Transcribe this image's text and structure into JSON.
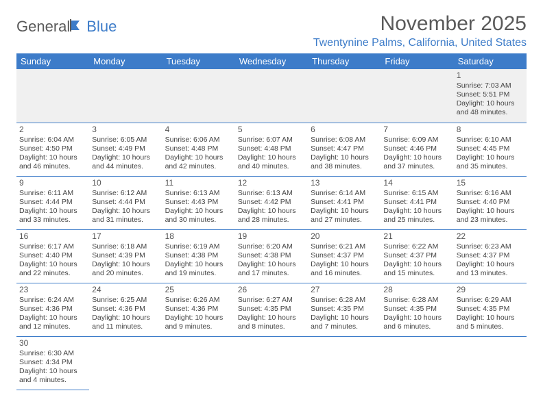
{
  "logo": {
    "text1": "General",
    "text2": "Blue"
  },
  "title": "November 2025",
  "location": "Twentynine Palms, California, United States",
  "colors": {
    "header_bg": "#3d7cc9",
    "header_text": "#ffffff",
    "border": "#3d7cc9",
    "logo_gray": "#5a5a5a"
  },
  "day_headers": [
    "Sunday",
    "Monday",
    "Tuesday",
    "Wednesday",
    "Thursday",
    "Friday",
    "Saturday"
  ],
  "weeks": [
    [
      null,
      null,
      null,
      null,
      null,
      null,
      {
        "n": "1",
        "sr": "Sunrise: 7:03 AM",
        "ss": "Sunset: 5:51 PM",
        "d1": "Daylight: 10 hours",
        "d2": "and 48 minutes."
      }
    ],
    [
      {
        "n": "2",
        "sr": "Sunrise: 6:04 AM",
        "ss": "Sunset: 4:50 PM",
        "d1": "Daylight: 10 hours",
        "d2": "and 46 minutes."
      },
      {
        "n": "3",
        "sr": "Sunrise: 6:05 AM",
        "ss": "Sunset: 4:49 PM",
        "d1": "Daylight: 10 hours",
        "d2": "and 44 minutes."
      },
      {
        "n": "4",
        "sr": "Sunrise: 6:06 AM",
        "ss": "Sunset: 4:48 PM",
        "d1": "Daylight: 10 hours",
        "d2": "and 42 minutes."
      },
      {
        "n": "5",
        "sr": "Sunrise: 6:07 AM",
        "ss": "Sunset: 4:48 PM",
        "d1": "Daylight: 10 hours",
        "d2": "and 40 minutes."
      },
      {
        "n": "6",
        "sr": "Sunrise: 6:08 AM",
        "ss": "Sunset: 4:47 PM",
        "d1": "Daylight: 10 hours",
        "d2": "and 38 minutes."
      },
      {
        "n": "7",
        "sr": "Sunrise: 6:09 AM",
        "ss": "Sunset: 4:46 PM",
        "d1": "Daylight: 10 hours",
        "d2": "and 37 minutes."
      },
      {
        "n": "8",
        "sr": "Sunrise: 6:10 AM",
        "ss": "Sunset: 4:45 PM",
        "d1": "Daylight: 10 hours",
        "d2": "and 35 minutes."
      }
    ],
    [
      {
        "n": "9",
        "sr": "Sunrise: 6:11 AM",
        "ss": "Sunset: 4:44 PM",
        "d1": "Daylight: 10 hours",
        "d2": "and 33 minutes."
      },
      {
        "n": "10",
        "sr": "Sunrise: 6:12 AM",
        "ss": "Sunset: 4:44 PM",
        "d1": "Daylight: 10 hours",
        "d2": "and 31 minutes."
      },
      {
        "n": "11",
        "sr": "Sunrise: 6:13 AM",
        "ss": "Sunset: 4:43 PM",
        "d1": "Daylight: 10 hours",
        "d2": "and 30 minutes."
      },
      {
        "n": "12",
        "sr": "Sunrise: 6:13 AM",
        "ss": "Sunset: 4:42 PM",
        "d1": "Daylight: 10 hours",
        "d2": "and 28 minutes."
      },
      {
        "n": "13",
        "sr": "Sunrise: 6:14 AM",
        "ss": "Sunset: 4:41 PM",
        "d1": "Daylight: 10 hours",
        "d2": "and 27 minutes."
      },
      {
        "n": "14",
        "sr": "Sunrise: 6:15 AM",
        "ss": "Sunset: 4:41 PM",
        "d1": "Daylight: 10 hours",
        "d2": "and 25 minutes."
      },
      {
        "n": "15",
        "sr": "Sunrise: 6:16 AM",
        "ss": "Sunset: 4:40 PM",
        "d1": "Daylight: 10 hours",
        "d2": "and 23 minutes."
      }
    ],
    [
      {
        "n": "16",
        "sr": "Sunrise: 6:17 AM",
        "ss": "Sunset: 4:40 PM",
        "d1": "Daylight: 10 hours",
        "d2": "and 22 minutes."
      },
      {
        "n": "17",
        "sr": "Sunrise: 6:18 AM",
        "ss": "Sunset: 4:39 PM",
        "d1": "Daylight: 10 hours",
        "d2": "and 20 minutes."
      },
      {
        "n": "18",
        "sr": "Sunrise: 6:19 AM",
        "ss": "Sunset: 4:38 PM",
        "d1": "Daylight: 10 hours",
        "d2": "and 19 minutes."
      },
      {
        "n": "19",
        "sr": "Sunrise: 6:20 AM",
        "ss": "Sunset: 4:38 PM",
        "d1": "Daylight: 10 hours",
        "d2": "and 17 minutes."
      },
      {
        "n": "20",
        "sr": "Sunrise: 6:21 AM",
        "ss": "Sunset: 4:37 PM",
        "d1": "Daylight: 10 hours",
        "d2": "and 16 minutes."
      },
      {
        "n": "21",
        "sr": "Sunrise: 6:22 AM",
        "ss": "Sunset: 4:37 PM",
        "d1": "Daylight: 10 hours",
        "d2": "and 15 minutes."
      },
      {
        "n": "22",
        "sr": "Sunrise: 6:23 AM",
        "ss": "Sunset: 4:37 PM",
        "d1": "Daylight: 10 hours",
        "d2": "and 13 minutes."
      }
    ],
    [
      {
        "n": "23",
        "sr": "Sunrise: 6:24 AM",
        "ss": "Sunset: 4:36 PM",
        "d1": "Daylight: 10 hours",
        "d2": "and 12 minutes."
      },
      {
        "n": "24",
        "sr": "Sunrise: 6:25 AM",
        "ss": "Sunset: 4:36 PM",
        "d1": "Daylight: 10 hours",
        "d2": "and 11 minutes."
      },
      {
        "n": "25",
        "sr": "Sunrise: 6:26 AM",
        "ss": "Sunset: 4:36 PM",
        "d1": "Daylight: 10 hours",
        "d2": "and 9 minutes."
      },
      {
        "n": "26",
        "sr": "Sunrise: 6:27 AM",
        "ss": "Sunset: 4:35 PM",
        "d1": "Daylight: 10 hours",
        "d2": "and 8 minutes."
      },
      {
        "n": "27",
        "sr": "Sunrise: 6:28 AM",
        "ss": "Sunset: 4:35 PM",
        "d1": "Daylight: 10 hours",
        "d2": "and 7 minutes."
      },
      {
        "n": "28",
        "sr": "Sunrise: 6:28 AM",
        "ss": "Sunset: 4:35 PM",
        "d1": "Daylight: 10 hours",
        "d2": "and 6 minutes."
      },
      {
        "n": "29",
        "sr": "Sunrise: 6:29 AM",
        "ss": "Sunset: 4:35 PM",
        "d1": "Daylight: 10 hours",
        "d2": "and 5 minutes."
      }
    ],
    [
      {
        "n": "30",
        "sr": "Sunrise: 6:30 AM",
        "ss": "Sunset: 4:34 PM",
        "d1": "Daylight: 10 hours",
        "d2": "and 4 minutes."
      },
      null,
      null,
      null,
      null,
      null,
      null
    ]
  ]
}
